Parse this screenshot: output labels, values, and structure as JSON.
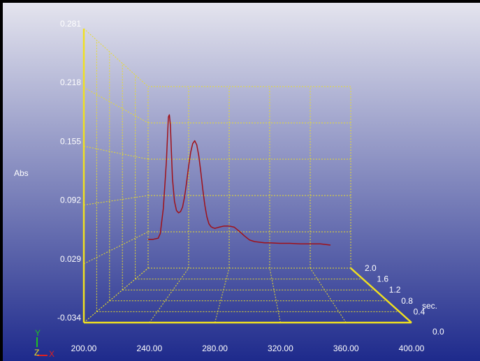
{
  "chart_data": {
    "type": "line",
    "style": "3d-waterfall",
    "title": "",
    "ylabel": "Abs",
    "zlabel": "sec.",
    "x_ticks": [
      "200.00",
      "240.00",
      "280.00",
      "320.00",
      "360.00",
      "400.00"
    ],
    "y_ticks": [
      "0.281",
      "0.218",
      "0.155",
      "0.092",
      "0.029",
      "-0.034"
    ],
    "z_ticks": [
      "2.0",
      "1.6",
      "1.2",
      "0.8",
      "0.4",
      "0.0"
    ],
    "xlim": [
      200,
      400
    ],
    "ylim": [
      -0.034,
      0.281
    ],
    "zlim": [
      0.0,
      2.0
    ],
    "grid": true,
    "orientation_axes": {
      "y": "Y",
      "z": "Z",
      "x": "X"
    },
    "colors": {
      "background_top": "#e4e4ee",
      "background_bottom": "#1e2a8c",
      "axes": "#f0e020",
      "grid": "#e8dc2a",
      "spectrum": "#a01018",
      "text": "#ffffff"
    },
    "series": [
      {
        "z": 2.0,
        "x": [
          200,
          205,
          210,
          212,
          215,
          218,
          220,
          221,
          222,
          223,
          224,
          226,
          228,
          230,
          232,
          234,
          236,
          238,
          240,
          242,
          244,
          246,
          248,
          250,
          252,
          254,
          256,
          258,
          260,
          262,
          264,
          266,
          268,
          270,
          275,
          280,
          285,
          290,
          295,
          300,
          305,
          310,
          315,
          320,
          330,
          340,
          350,
          360,
          370,
          380
        ],
        "y": [
          0.016,
          0.016,
          0.018,
          0.026,
          0.07,
          0.15,
          0.228,
          0.232,
          0.214,
          0.168,
          0.122,
          0.082,
          0.066,
          0.062,
          0.064,
          0.072,
          0.09,
          0.115,
          0.143,
          0.167,
          0.182,
          0.187,
          0.18,
          0.161,
          0.133,
          0.102,
          0.075,
          0.055,
          0.043,
          0.038,
          0.036,
          0.035,
          0.036,
          0.037,
          0.039,
          0.039,
          0.037,
          0.03,
          0.022,
          0.015,
          0.012,
          0.011,
          0.01,
          0.01,
          0.009,
          0.009,
          0.008,
          0.008,
          0.008,
          0.006
        ]
      }
    ]
  }
}
